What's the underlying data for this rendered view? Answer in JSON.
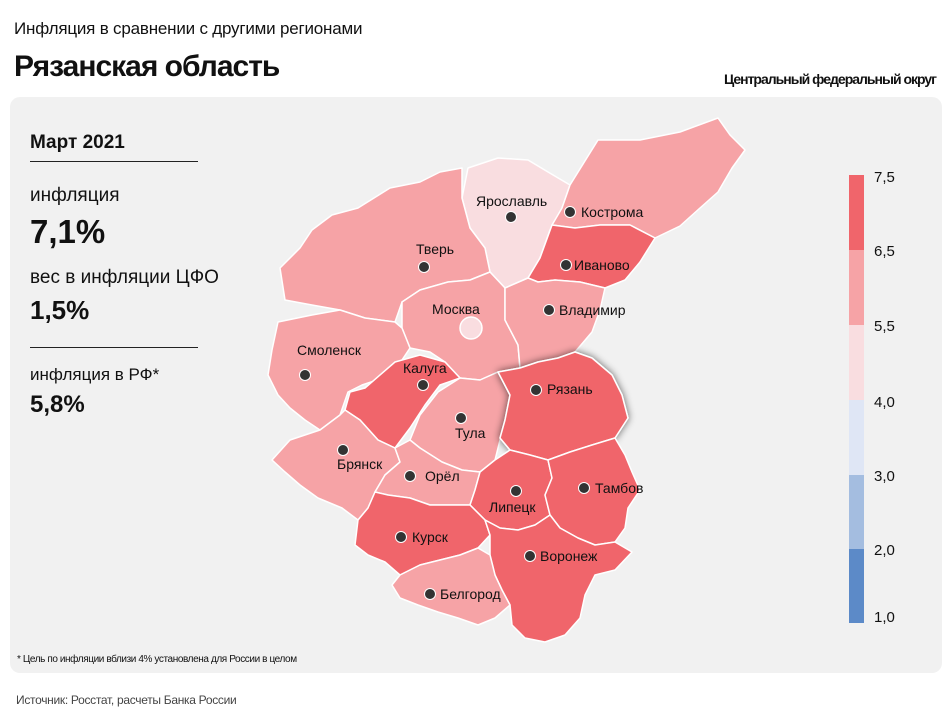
{
  "header": {
    "subtitle": "Инфляция в сравнении с другими регионами",
    "title": "Рязанская область",
    "district": "Центральный федеральный округ"
  },
  "info": {
    "period": "Март 2021",
    "inflation_label": "инфляция",
    "inflation_value": "7,1%",
    "weight_label": "вес в инфляции ЦФО",
    "weight_value": "1,5%",
    "rf_label": "инфляция в РФ*",
    "rf_value": "5,8%"
  },
  "footnote": "* Цель по инфляции вблизи 4% установлена для России в целом",
  "source": "Источник: Росстат, расчеты Банка России",
  "legend": {
    "ticks": [
      "7,5",
      "6,5",
      "5,5",
      "4,0",
      "3,0",
      "2,0",
      "1,0"
    ],
    "colors": [
      "#f0656b",
      "#f6a3a6",
      "#f9dde0",
      "#dfe6f5",
      "#a4bde0",
      "#5c8ac8"
    ]
  },
  "regions": [
    {
      "name": "Ярославль",
      "color": "#f9dde0"
    },
    {
      "name": "Кострома",
      "color": "#f6a3a6"
    },
    {
      "name": "Иваново",
      "color": "#f0656b"
    },
    {
      "name": "Тверь",
      "color": "#f6a3a6"
    },
    {
      "name": "Москва",
      "color": "#f6a3a6"
    },
    {
      "name": "Владимир",
      "color": "#f6a3a6"
    },
    {
      "name": "Смоленск",
      "color": "#f6a3a6"
    },
    {
      "name": "Калуга",
      "color": "#f0656b"
    },
    {
      "name": "Тула",
      "color": "#f6a3a6"
    },
    {
      "name": "Рязань",
      "color": "#f0656b"
    },
    {
      "name": "Брянск",
      "color": "#f6a3a6"
    },
    {
      "name": "Орёл",
      "color": "#f6a3a6"
    },
    {
      "name": "Липецк",
      "color": "#f0656b"
    },
    {
      "name": "Тамбов",
      "color": "#f0656b"
    },
    {
      "name": "Курск",
      "color": "#f0656b"
    },
    {
      "name": "Воронеж",
      "color": "#f0656b"
    },
    {
      "name": "Белгород",
      "color": "#f6a3a6"
    }
  ]
}
